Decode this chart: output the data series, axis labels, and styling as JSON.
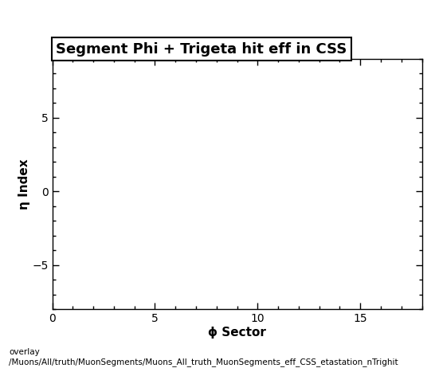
{
  "title": "Segment Phi + Trigeta hit eff in CSS",
  "xlabel": "ϕ Sector",
  "ylabel": "η Index",
  "xlim": [
    0,
    18
  ],
  "ylim": [
    -8,
    9
  ],
  "xticks": [
    0,
    5,
    10,
    15
  ],
  "yticks": [
    -5,
    0,
    5
  ],
  "background_color": "#ffffff",
  "plot_bg_color": "#ffffff",
  "footer_line1": "overlay",
  "footer_line2": "/Muons/All/truth/MuonSegments/Muons_All_truth_MuonSegments_eff_CSS_etastation_nTrighit",
  "title_fontsize": 13,
  "axis_label_fontsize": 11,
  "tick_fontsize": 10,
  "footer_fontsize": 7.5
}
